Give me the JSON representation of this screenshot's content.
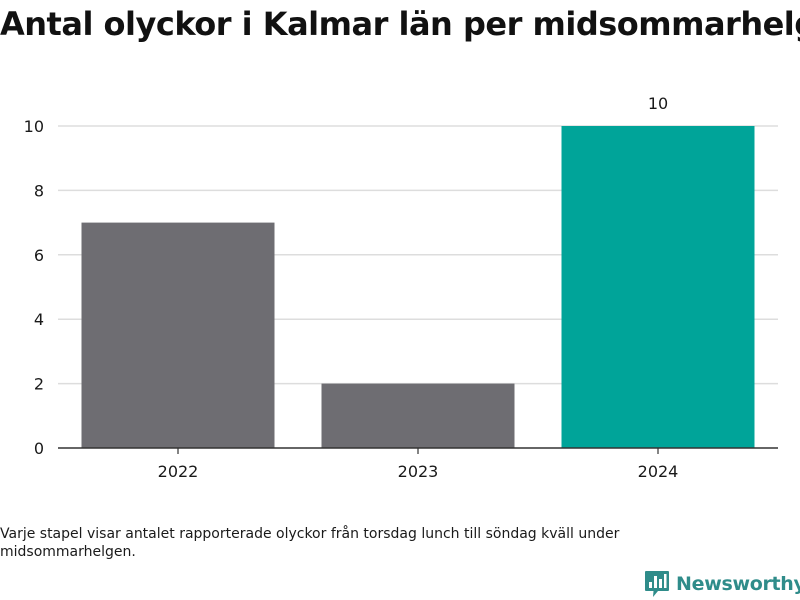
{
  "title": "Antal olyckor i Kalmar län per midsommarhelg",
  "caption": "Varje stapel visar antalet rapporterade olyckor från torsdag lunch till söndag kväll under midsommarhelgen.",
  "brand": {
    "name": "Newsworthy",
    "logo_icon": "bar-chart-speech-bubble-icon",
    "color": "#2f8c8a"
  },
  "chart_data": {
    "type": "bar",
    "title": "Antal olyckor i Kalmar län per midsommarhelg",
    "xlabel": "",
    "ylabel": "",
    "categories": [
      "2022",
      "2023",
      "2024"
    ],
    "values": [
      7,
      2,
      10
    ],
    "colors": [
      "#6e6d72",
      "#6e6d72",
      "#00a499"
    ],
    "data_labels": [
      "",
      "",
      "10"
    ],
    "ylim": [
      0,
      10
    ],
    "yticks": [
      0,
      2,
      4,
      6,
      8,
      10
    ],
    "grid": true,
    "legend": "none"
  }
}
